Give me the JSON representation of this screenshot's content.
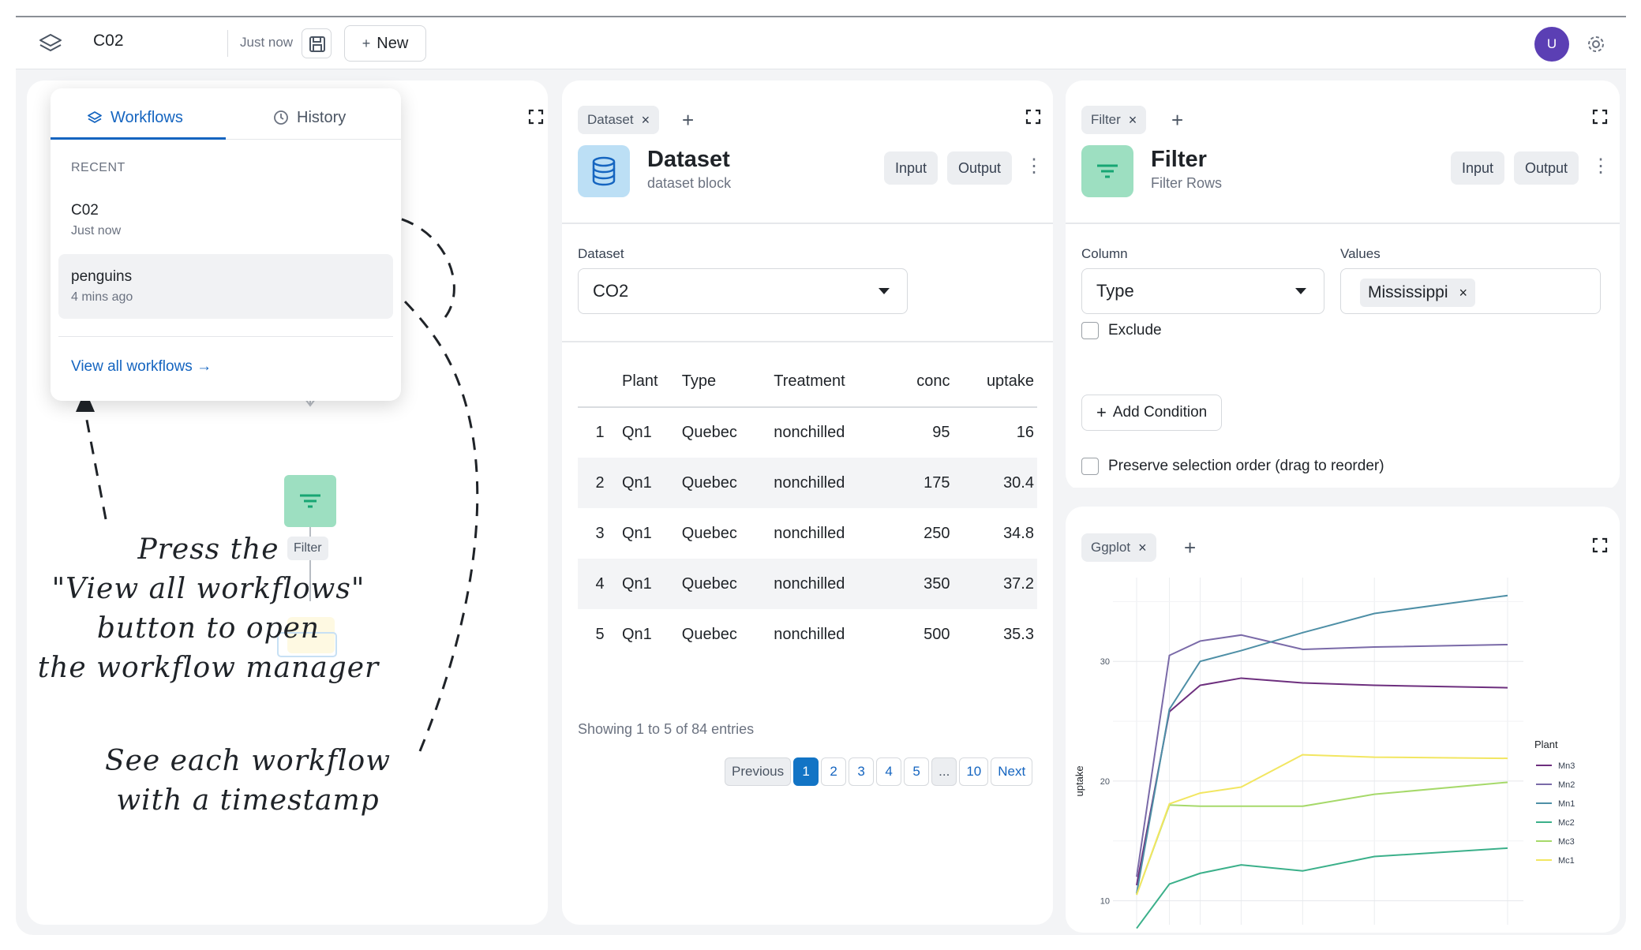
{
  "topbar": {
    "workflow_name": "C02",
    "saved_status": "Just now",
    "new_label": "New",
    "avatar_initial": "U"
  },
  "dropdown": {
    "tab_workflows": "Workflows",
    "tab_history": "History",
    "recent_label": "RECENT",
    "workflows": [
      {
        "name": "C02",
        "time": "Just now"
      },
      {
        "name": "penguins",
        "time": "4 mins ago"
      }
    ],
    "view_all": "View all workflows →"
  },
  "canvas": {
    "filter_node_label": "Filter"
  },
  "annotations": {
    "press_view_all": [
      "Press the",
      "\"View all workflows\"",
      "button to open",
      "the workflow manager"
    ],
    "see_timestamp": [
      "See each workflow",
      "with a timestamp"
    ]
  },
  "dataset_panel": {
    "chip": "Dataset",
    "title": "Dataset",
    "subtitle": "dataset block",
    "input_label": "Input",
    "output_label": "Output",
    "field_label": "Dataset",
    "selected_dataset": "CO2",
    "table": {
      "columns": [
        "",
        "Plant",
        "Type",
        "Treatment",
        "conc",
        "uptake"
      ],
      "rows": [
        [
          "1",
          "Qn1",
          "Quebec",
          "nonchilled",
          "95",
          "16"
        ],
        [
          "2",
          "Qn1",
          "Quebec",
          "nonchilled",
          "175",
          "30.4"
        ],
        [
          "3",
          "Qn1",
          "Quebec",
          "nonchilled",
          "250",
          "34.8"
        ],
        [
          "4",
          "Qn1",
          "Quebec",
          "nonchilled",
          "350",
          "37.2"
        ],
        [
          "5",
          "Qn1",
          "Quebec",
          "nonchilled",
          "500",
          "35.3"
        ]
      ]
    },
    "showing": "Showing 1 to 5 of 84 entries",
    "pagination": [
      "Previous",
      "1",
      "2",
      "3",
      "4",
      "5",
      "...",
      "10",
      "Next"
    ]
  },
  "filter_panel": {
    "chip": "Filter",
    "title": "Filter",
    "subtitle": "Filter Rows",
    "input_label": "Input",
    "output_label": "Output",
    "column_label": "Column",
    "column_value": "Type",
    "values_label": "Values",
    "values_tag": "Mississippi",
    "exclude_label": "Exclude",
    "add_condition": "Add Condition",
    "preserve_label": "Preserve selection order (drag to reorder)"
  },
  "ggplot_panel": {
    "chip": "Ggplot"
  },
  "chart_data": {
    "type": "line",
    "title": "",
    "xlabel": "",
    "ylabel": "uptake",
    "x": [
      95,
      175,
      250,
      350,
      500,
      675,
      1000
    ],
    "ylim": [
      8,
      37
    ],
    "yticks": [
      10,
      20,
      30
    ],
    "legend_title": "Plant",
    "legend_position": "right",
    "series": [
      {
        "name": "Mn3",
        "color": "#6d2f7e",
        "values": [
          11.3,
          25.8,
          28.0,
          28.6,
          28.2,
          28.0,
          27.8
        ]
      },
      {
        "name": "Mn2",
        "color": "#7a6aa8",
        "values": [
          12.0,
          30.5,
          31.7,
          32.2,
          31.0,
          31.2,
          31.4
        ]
      },
      {
        "name": "Mn1",
        "color": "#4e8fa6",
        "values": [
          10.6,
          26.0,
          30.0,
          30.9,
          32.4,
          34.0,
          35.5
        ]
      },
      {
        "name": "Mc2",
        "color": "#3bb08a",
        "values": [
          7.7,
          11.4,
          12.3,
          13.0,
          12.5,
          13.7,
          14.4
        ]
      },
      {
        "name": "Mc3",
        "color": "#a6d96a",
        "values": [
          10.5,
          18.0,
          17.9,
          17.9,
          17.9,
          18.9,
          19.9
        ]
      },
      {
        "name": "Mc1",
        "color": "#f2e661",
        "values": [
          10.5,
          18.1,
          19.0,
          19.5,
          22.2,
          22.0,
          21.9
        ]
      }
    ]
  },
  "colors": {
    "accent": "#1565c0",
    "avatar": "#5b3fb4",
    "dataset_icon_bg": "#bcdff5",
    "filter_icon_bg": "#9ddfc1"
  }
}
